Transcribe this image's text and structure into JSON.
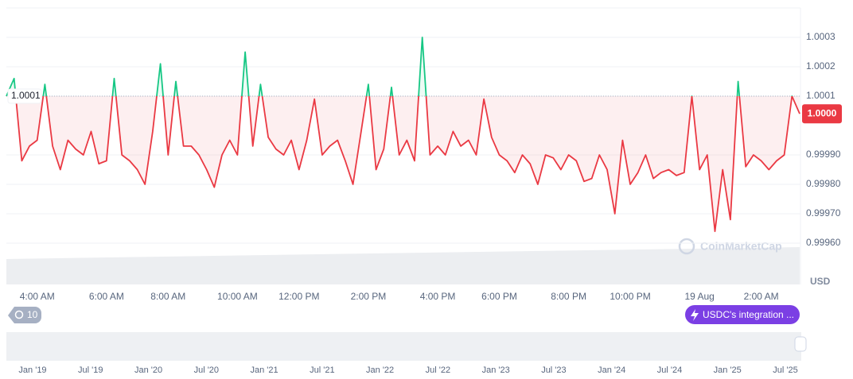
{
  "chart_data": {
    "type": "line",
    "categories": [
      null,
      null,
      null,
      null,
      "4:00 AM",
      null,
      null,
      null,
      null,
      null,
      null,
      null,
      null,
      "6:00 AM",
      null,
      null,
      null,
      null,
      null,
      null,
      null,
      "8:00 AM",
      null,
      null,
      null,
      null,
      null,
      null,
      null,
      null,
      "10:00 AM",
      null,
      null,
      null,
      null,
      null,
      null,
      null,
      "12:00 PM",
      null,
      null,
      null,
      null,
      null,
      null,
      null,
      null,
      "2:00 PM",
      null,
      null,
      null,
      null,
      null,
      null,
      null,
      null,
      "4:00 PM",
      null,
      null,
      null,
      null,
      null,
      null,
      null,
      "6:00 PM",
      null,
      null,
      null,
      null,
      null,
      null,
      null,
      null,
      "8:00 PM",
      null,
      null,
      null,
      null,
      null,
      null,
      null,
      "10:00 PM",
      null,
      null,
      null,
      null,
      null,
      null,
      null,
      null,
      "19 Aug",
      null,
      null,
      null,
      null,
      null,
      null,
      null,
      "2:00 AM",
      null,
      null,
      null,
      null,
      null
    ],
    "values": [
      1.0001,
      1.00016,
      0.99988,
      0.99993,
      0.99995,
      1.00014,
      0.99993,
      0.99985,
      0.99995,
      0.99992,
      0.9999,
      0.99998,
      0.99987,
      0.99988,
      1.00016,
      0.9999,
      0.99988,
      0.99985,
      0.9998,
      0.99998,
      1.00021,
      0.9999,
      1.00015,
      0.99993,
      0.99993,
      0.9999,
      0.99985,
      0.99979,
      0.9999,
      0.99995,
      0.9999,
      1.00025,
      0.99993,
      1.00014,
      0.99996,
      0.99992,
      0.9999,
      0.99995,
      0.99985,
      0.99995,
      1.00009,
      0.9999,
      0.99993,
      0.99995,
      0.99988,
      0.9998,
      0.99997,
      1.00014,
      0.99985,
      0.99992,
      1.00013,
      0.9999,
      0.99995,
      0.99988,
      1.0003,
      0.9999,
      0.99993,
      0.9999,
      0.99998,
      0.99993,
      0.99995,
      0.9999,
      1.00009,
      0.99996,
      0.9999,
      0.99988,
      0.99984,
      0.9999,
      0.99987,
      0.9998,
      0.9999,
      0.99989,
      0.99985,
      0.9999,
      0.99988,
      0.99981,
      0.99982,
      0.9999,
      0.99985,
      0.9997,
      0.99995,
      0.9998,
      0.99984,
      0.9999,
      0.99982,
      0.99984,
      0.99985,
      0.99983,
      0.99984,
      1.0001,
      0.99985,
      0.9999,
      0.99964,
      0.99985,
      0.99968,
      1.00015,
      0.99986,
      0.9999,
      0.99988,
      0.99985,
      0.99988,
      0.9999,
      1.0001,
      1.00004
    ],
    "color": "#ea3943",
    "color_above": "#16c784",
    "reference_line": 1.0001,
    "current_price": {
      "value": 1.00004,
      "label": "1.0000"
    },
    "ylim": [
      0.9996,
      1.0004
    ],
    "yticks": [
      {
        "value": 0.9996,
        "label": "0.99960"
      },
      {
        "value": 0.9997,
        "label": "0.99970"
      },
      {
        "value": 0.9998,
        "label": "0.99980"
      },
      {
        "value": 0.9999,
        "label": "0.99990"
      },
      1.0001,
      1.0002,
      1.0003
    ],
    "y_unit": "USD",
    "grid": true
  },
  "ui": {
    "history_badge": "10",
    "event_button": "USDC's integration ...",
    "watermark": "CoinMarketCap",
    "navigator_labels": [
      "Jan '19",
      "Jul '19",
      "Jan '20",
      "Jul '20",
      "Jan '21",
      "Jul '21",
      "Jan '22",
      "Jul '22",
      "Jan '23",
      "Jul '23",
      "Jan '24",
      "Jul '24",
      "Jan '25",
      "Jul '25"
    ]
  }
}
